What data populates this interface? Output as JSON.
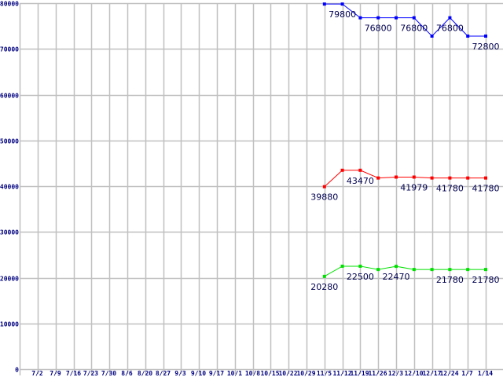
{
  "chart_data": {
    "type": "line",
    "title": "",
    "xlabel": "",
    "ylabel": "",
    "ylim": [
      0,
      80000
    ],
    "yticks": [
      0,
      10000,
      20000,
      30000,
      40000,
      50000,
      60000,
      70000,
      80000
    ],
    "grid": true,
    "categories": [
      "7/2",
      "7/9",
      "7/16",
      "7/23",
      "7/30",
      "8/6",
      "8/20",
      "8/27",
      "9/3",
      "9/10",
      "9/17",
      "10/1",
      "10/8",
      "10/15",
      "10/22",
      "10/29",
      "11/5",
      "11/12",
      "11/19",
      "11/26",
      "12/3",
      "12/10",
      "12/17",
      "12/24",
      "1/7",
      "1/14"
    ],
    "series": [
      {
        "name": "blue",
        "color": "#0000ff",
        "values": [
          null,
          null,
          null,
          null,
          null,
          null,
          null,
          null,
          null,
          null,
          null,
          null,
          null,
          null,
          null,
          null,
          79800,
          79800,
          76800,
          76800,
          76800,
          76800,
          72800,
          76800,
          72800,
          72800
        ],
        "labels": [
          {
            "index": 17,
            "text": "79800"
          },
          {
            "index": 19,
            "text": "76800"
          },
          {
            "index": 21,
            "text": "76800"
          },
          {
            "index": 23,
            "text": "76800"
          },
          {
            "index": 25,
            "text": "72800"
          }
        ]
      },
      {
        "name": "red",
        "color": "#ff0000",
        "values": [
          null,
          null,
          null,
          null,
          null,
          null,
          null,
          null,
          null,
          null,
          null,
          null,
          null,
          null,
          null,
          null,
          39880,
          43470,
          43470,
          41780,
          41979,
          41979,
          41780,
          41780,
          41780,
          41780
        ],
        "labels": [
          {
            "index": 16,
            "text": "39880"
          },
          {
            "index": 18,
            "text": "43470"
          },
          {
            "index": 21,
            "text": "41979"
          },
          {
            "index": 23,
            "text": "41780"
          },
          {
            "index": 25,
            "text": "41780"
          }
        ]
      },
      {
        "name": "green",
        "color": "#00e000",
        "values": [
          null,
          null,
          null,
          null,
          null,
          null,
          null,
          null,
          null,
          null,
          null,
          null,
          null,
          null,
          null,
          null,
          20280,
          22500,
          22500,
          21780,
          22470,
          21780,
          21780,
          21780,
          21780,
          21780
        ],
        "labels": [
          {
            "index": 16,
            "text": "20280"
          },
          {
            "index": 18,
            "text": "22500"
          },
          {
            "index": 20,
            "text": "22470"
          },
          {
            "index": 23,
            "text": "21780"
          },
          {
            "index": 25,
            "text": "21780"
          }
        ]
      }
    ]
  }
}
